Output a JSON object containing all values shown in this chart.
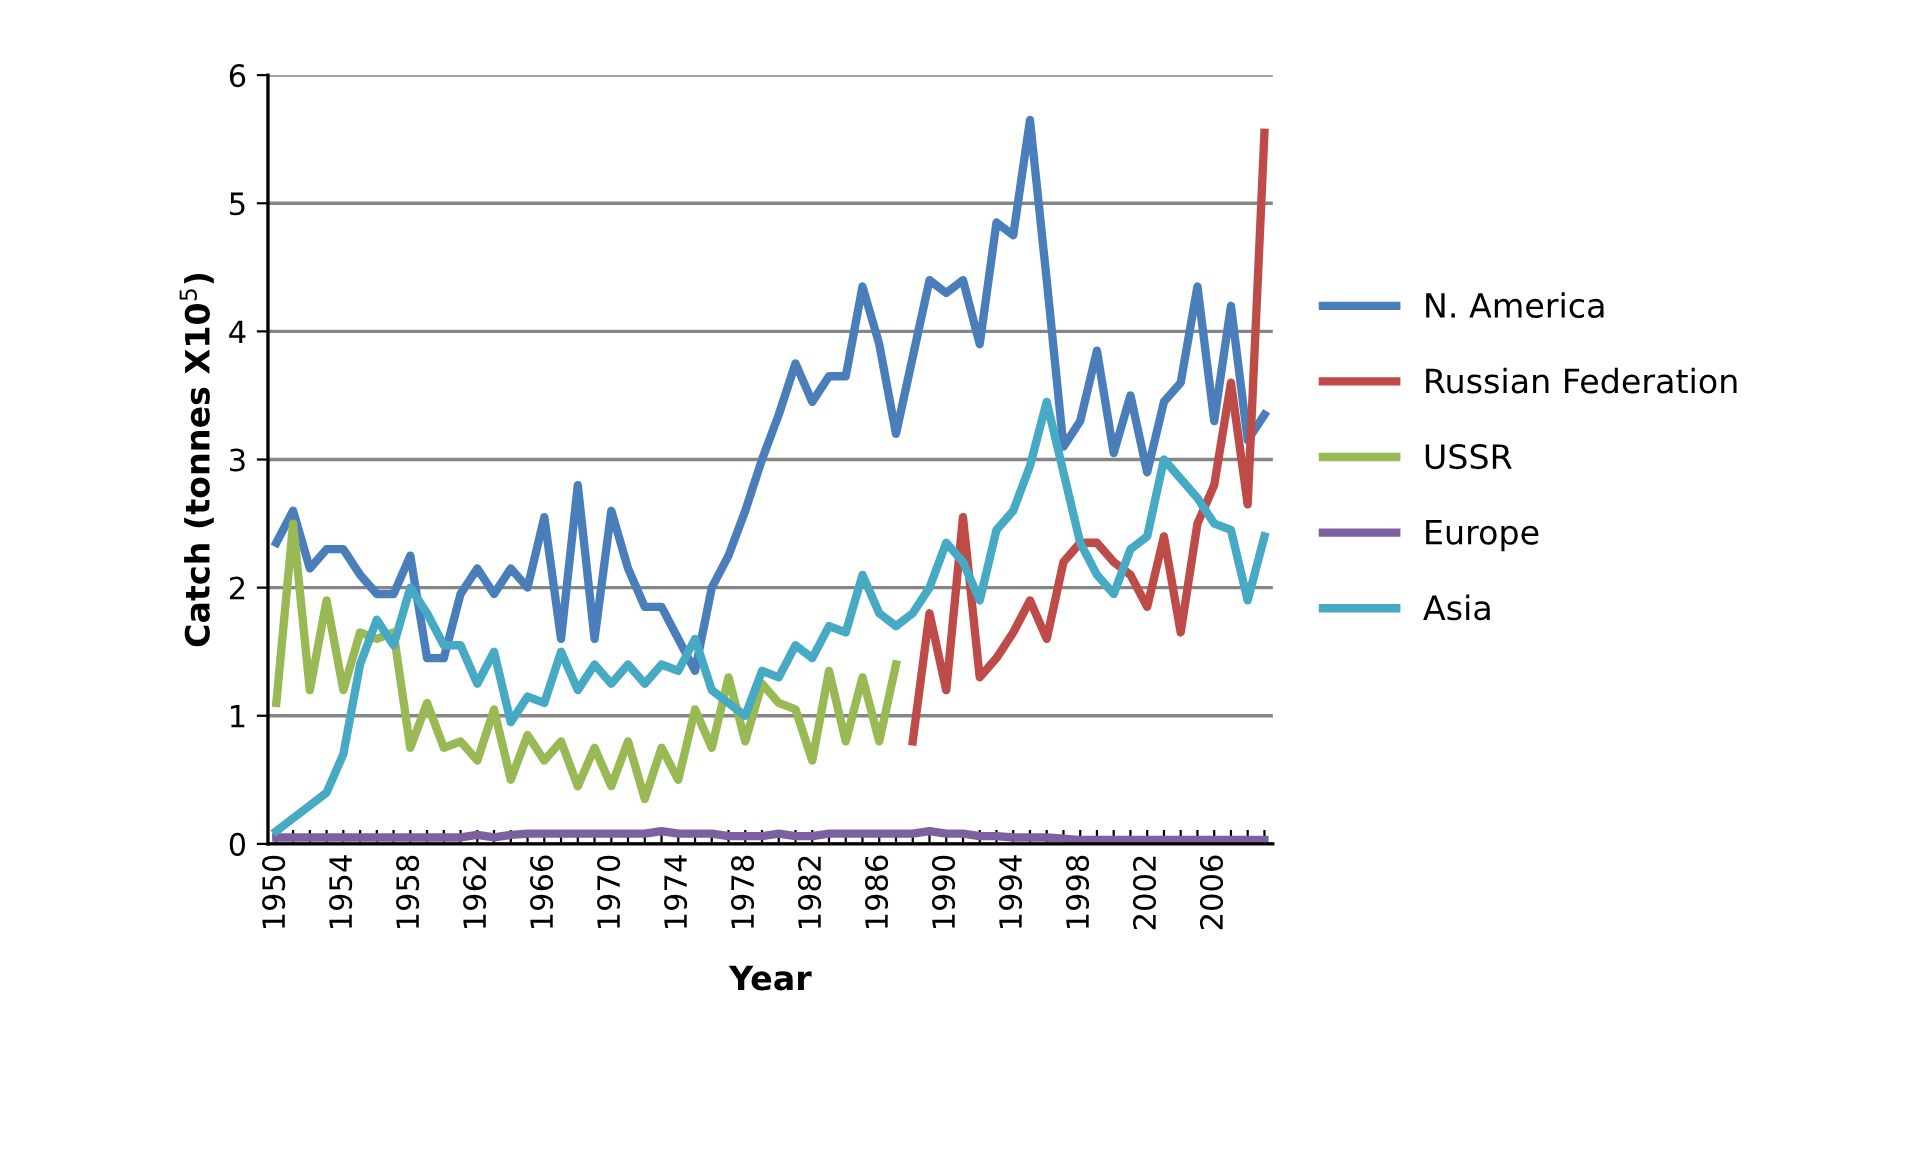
{
  "chart_data": {
    "type": "line",
    "xlabel": "Year",
    "ylabel": "Catch (tonnes X10$^{5}$)",
    "x": [
      1950,
      1951,
      1952,
      1953,
      1954,
      1955,
      1956,
      1957,
      1958,
      1959,
      1960,
      1961,
      1962,
      1963,
      1964,
      1965,
      1966,
      1967,
      1968,
      1969,
      1970,
      1971,
      1972,
      1973,
      1974,
      1975,
      1976,
      1977,
      1978,
      1979,
      1980,
      1981,
      1982,
      1983,
      1984,
      1985,
      1986,
      1987,
      1988,
      1989,
      1990,
      1991,
      1992,
      1993,
      1994,
      1995,
      1996,
      1997,
      1998,
      1999,
      2000,
      2001,
      2002,
      2003,
      2004,
      2005,
      2006,
      2007,
      2008,
      2009
    ],
    "series": [
      {
        "name": "N. America",
        "color": "#4a7ebb",
        "values": [
          2.35,
          2.6,
          2.15,
          2.3,
          2.3,
          2.1,
          1.95,
          1.95,
          2.25,
          1.45,
          1.45,
          1.95,
          2.15,
          1.95,
          2.15,
          2.0,
          2.55,
          1.6,
          2.8,
          1.6,
          2.6,
          2.15,
          1.85,
          1.85,
          1.6,
          1.35,
          2.0,
          2.25,
          2.6,
          3.0,
          3.35,
          3.75,
          3.45,
          3.65,
          3.65,
          4.35,
          3.9,
          3.2,
          3.8,
          4.4,
          4.3,
          4.4,
          3.9,
          4.85,
          4.75,
          5.65,
          4.4,
          3.1,
          3.3,
          3.85,
          3.05,
          3.5,
          2.9,
          3.45,
          3.6,
          4.35,
          3.3,
          4.2,
          3.15,
          3.35
        ]
      },
      {
        "name": "Russian Federation",
        "color": "#be4b48",
        "values": [
          null,
          null,
          null,
          null,
          null,
          null,
          null,
          null,
          null,
          null,
          null,
          null,
          null,
          null,
          null,
          null,
          null,
          null,
          null,
          null,
          null,
          null,
          null,
          null,
          null,
          null,
          null,
          null,
          null,
          null,
          null,
          null,
          null,
          null,
          null,
          null,
          null,
          null,
          0.8,
          1.8,
          1.2,
          2.55,
          1.3,
          1.45,
          1.65,
          1.9,
          1.6,
          2.2,
          2.35,
          2.35,
          2.2,
          2.1,
          1.85,
          2.4,
          1.65,
          2.5,
          2.8,
          3.6,
          2.65,
          5.55
        ]
      },
      {
        "name": "USSR",
        "color": "#98b954",
        "values": [
          1.1,
          2.5,
          1.2,
          1.9,
          1.2,
          1.65,
          1.6,
          1.65,
          0.75,
          1.1,
          0.75,
          0.8,
          0.65,
          1.05,
          0.5,
          0.85,
          0.65,
          0.8,
          0.45,
          0.75,
          0.45,
          0.8,
          0.35,
          0.75,
          0.5,
          1.05,
          0.75,
          1.3,
          0.8,
          1.25,
          1.1,
          1.05,
          0.65,
          1.35,
          0.8,
          1.3,
          0.8,
          1.4,
          null,
          null,
          null,
          null,
          null,
          null,
          null,
          null,
          null,
          null,
          null,
          null,
          null,
          null,
          null,
          null,
          null,
          null,
          null,
          null,
          null,
          null
        ]
      },
      {
        "name": "Europe",
        "color": "#7d60a0",
        "values": [
          0.05,
          0.05,
          0.05,
          0.05,
          0.05,
          0.05,
          0.05,
          0.05,
          0.05,
          0.05,
          0.05,
          0.05,
          0.07,
          0.05,
          0.07,
          0.08,
          0.08,
          0.08,
          0.08,
          0.08,
          0.08,
          0.08,
          0.08,
          0.1,
          0.08,
          0.08,
          0.08,
          0.06,
          0.06,
          0.06,
          0.08,
          0.06,
          0.06,
          0.08,
          0.08,
          0.08,
          0.08,
          0.08,
          0.08,
          0.1,
          0.08,
          0.08,
          0.06,
          0.06,
          0.05,
          0.05,
          0.05,
          0.04,
          0.03,
          0.03,
          0.03,
          0.03,
          0.03,
          0.03,
          0.03,
          0.03,
          0.03,
          0.03,
          0.03,
          0.03
        ]
      },
      {
        "name": "Asia",
        "color": "#46aac5",
        "values": [
          0.1,
          0.2,
          0.3,
          0.4,
          0.7,
          1.4,
          1.75,
          1.55,
          2.0,
          1.8,
          1.55,
          1.55,
          1.25,
          1.5,
          0.95,
          1.15,
          1.1,
          1.5,
          1.2,
          1.4,
          1.25,
          1.4,
          1.25,
          1.4,
          1.35,
          1.6,
          1.2,
          1.1,
          1.0,
          1.35,
          1.3,
          1.55,
          1.45,
          1.7,
          1.65,
          2.1,
          1.8,
          1.7,
          1.8,
          2.0,
          2.35,
          2.2,
          1.9,
          2.45,
          2.6,
          2.95,
          3.45,
          2.9,
          2.35,
          2.1,
          1.95,
          2.3,
          2.4,
          3.0,
          2.85,
          2.7,
          2.5,
          2.45,
          1.9,
          2.4
        ]
      }
    ],
    "xlim": [
      1949.5,
      2009.5
    ],
    "xticks": [
      1950,
      {
        "value": 1951,
        "label": null
      },
      {
        "value": 1952,
        "label": null
      },
      {
        "value": 1953,
        "label": null
      },
      1954,
      {
        "value": 1955,
        "label": null
      },
      {
        "value": 1956,
        "label": null
      },
      {
        "value": 1957,
        "label": null
      },
      1958,
      {
        "value": 1959,
        "label": null
      },
      {
        "value": 1960,
        "label": null
      },
      {
        "value": 1961,
        "label": null
      },
      1962,
      {
        "value": 1963,
        "label": null
      },
      {
        "value": 1964,
        "label": null
      },
      {
        "value": 1965,
        "label": null
      },
      1966,
      {
        "value": 1967,
        "label": null
      },
      {
        "value": 1968,
        "label": null
      },
      {
        "value": 1969,
        "label": null
      },
      1970,
      {
        "value": 1971,
        "label": null
      },
      {
        "value": 1972,
        "label": null
      },
      {
        "value": 1973,
        "label": null
      },
      1974,
      {
        "value": 1975,
        "label": null
      },
      {
        "value": 1976,
        "label": null
      },
      {
        "value": 1977,
        "label": null
      },
      1978,
      {
        "value": 1979,
        "label": null
      },
      {
        "value": 1980,
        "label": null
      },
      {
        "value": 1981,
        "label": null
      },
      1982,
      {
        "value": 1983,
        "label": null
      },
      {
        "value": 1984,
        "label": null
      },
      {
        "value": 1985,
        "label": null
      },
      1986,
      {
        "value": 1987,
        "label": null
      },
      {
        "value": 1988,
        "label": null
      },
      {
        "value": 1989,
        "label": null
      },
      1990,
      {
        "value": 1991,
        "label": null
      },
      {
        "value": 1992,
        "label": null
      },
      {
        "value": 1993,
        "label": null
      },
      1994,
      {
        "value": 1995,
        "label": null
      },
      {
        "value": 1996,
        "label": null
      },
      {
        "value": 1997,
        "label": null
      },
      1998,
      {
        "value": 1999,
        "label": null
      },
      {
        "value": 2000,
        "label": null
      },
      {
        "value": 2001,
        "label": null
      },
      2002,
      {
        "value": 2003,
        "label": null
      },
      {
        "value": 2004,
        "label": null
      },
      {
        "value": 2005,
        "label": null
      },
      2006,
      {
        "value": 2007,
        "label": null
      },
      {
        "value": 2008,
        "label": null
      },
      {
        "value": 2009,
        "label": null
      }
    ],
    "ylim": [
      0,
      6
    ],
    "yticks": [
      0,
      1,
      2,
      3,
      4,
      5,
      6
    ],
    "grid": "y",
    "legend": "right",
    "marker": "none",
    "line_style": "solid"
  }
}
